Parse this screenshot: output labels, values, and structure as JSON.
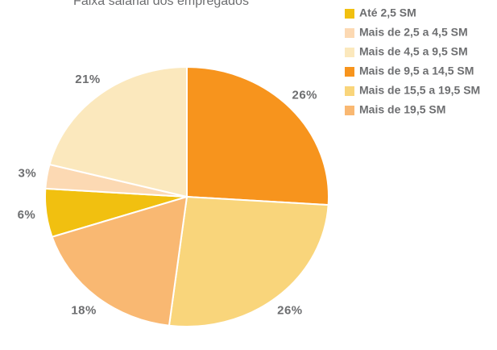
{
  "chart_data": {
    "type": "pie",
    "title": "Faixa salarial dos empregados",
    "categories": [
      "Até 2,5 SM",
      "Mais de 2,5 a 4,5 SM",
      "Mais de 4,5 a 9,5 SM",
      "Mais de 9,5 a 14,5 SM",
      "Mais de 15,5 a 19,5 SM",
      "Mais de 19,5 SM"
    ],
    "values": [
      6,
      3,
      21,
      26,
      26,
      18
    ],
    "value_labels": [
      "6%",
      "3%",
      "21%",
      "26%",
      "26%",
      "18%"
    ],
    "colors": [
      "#f1c010",
      "#fcd9b3",
      "#fbe8bd",
      "#f7941d",
      "#f9d57b",
      "#f9b872"
    ],
    "legend": "top-right"
  }
}
